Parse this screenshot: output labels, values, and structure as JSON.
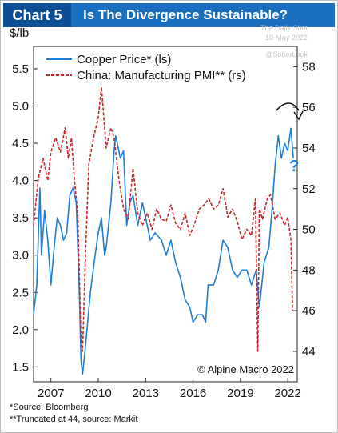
{
  "header": {
    "tag": "Chart 5",
    "title": "Is The Divergence Sustainable?"
  },
  "watermark": {
    "line1": "The Daily Shot",
    "line2": "10-May-2022",
    "line3": "@SoberLook"
  },
  "colors": {
    "header_bg": "#1a6fc0",
    "tag_bg": "#0d4f95",
    "copper": "#1f7ed6",
    "pmi": "#c62828"
  },
  "chart_data": {
    "type": "line",
    "title": "Is The Divergence Sustainable?",
    "left_axis": {
      "label": "$/lb",
      "ylim": [
        1.3,
        5.8
      ],
      "ticks": [
        "1.5",
        "2.0",
        "2.5",
        "3.0",
        "3.5",
        "4.0",
        "4.5",
        "5.0",
        "5.5"
      ]
    },
    "right_axis": {
      "ylim": [
        42.5,
        59
      ],
      "ticks": [
        "44",
        "46",
        "48",
        "50",
        "52",
        "54",
        "56",
        "58"
      ]
    },
    "x_axis": {
      "xlim": [
        2005.9,
        2022.6
      ],
      "ticks": [
        "2007",
        "2010",
        "2013",
        "2016",
        "2019",
        "2022"
      ]
    },
    "legend": [
      "Copper Price* (ls)",
      "China: Manufacturing PMI** (rs)"
    ],
    "annotations": {
      "copyright": "© Alpine Macro 2022",
      "question_mark": "?"
    },
    "series": [
      {
        "name": "Copper Price* (ls)",
        "axis": "left",
        "style": "solid",
        "x": [
          2005.9,
          2006.1,
          2006.3,
          2006.4,
          2006.6,
          2006.8,
          2007.0,
          2007.2,
          2007.4,
          2007.6,
          2007.8,
          2008.0,
          2008.2,
          2008.4,
          2008.6,
          2008.8,
          2008.9,
          2009.0,
          2009.2,
          2009.5,
          2009.8,
          2010.0,
          2010.2,
          2010.4,
          2010.5,
          2010.8,
          2011.0,
          2011.1,
          2011.4,
          2011.6,
          2011.8,
          2012.0,
          2012.2,
          2012.5,
          2012.8,
          2013.0,
          2013.3,
          2013.6,
          2014.0,
          2014.3,
          2014.6,
          2014.9,
          2015.2,
          2015.5,
          2015.8,
          2016.0,
          2016.3,
          2016.6,
          2016.8,
          2016.95,
          2017.3,
          2017.6,
          2017.9,
          2018.2,
          2018.5,
          2018.8,
          2019.1,
          2019.4,
          2019.7,
          2020.0,
          2020.2,
          2020.3,
          2020.5,
          2020.8,
          2021.0,
          2021.2,
          2021.4,
          2021.6,
          2021.8,
          2022.0,
          2022.2,
          2022.35
        ],
        "y": [
          2.2,
          2.6,
          3.9,
          3.0,
          3.6,
          3.2,
          2.6,
          3.1,
          3.5,
          3.4,
          3.2,
          3.3,
          3.8,
          3.9,
          3.7,
          2.5,
          1.6,
          1.4,
          1.8,
          2.5,
          3.0,
          3.3,
          3.5,
          3.0,
          3.1,
          3.7,
          4.4,
          4.6,
          4.3,
          4.4,
          3.4,
          3.7,
          3.8,
          3.4,
          3.7,
          3.5,
          3.2,
          3.3,
          3.2,
          3.0,
          3.2,
          2.9,
          2.7,
          2.4,
          2.3,
          2.1,
          2.2,
          2.2,
          2.1,
          2.6,
          2.6,
          2.8,
          3.2,
          3.1,
          2.8,
          2.7,
          2.8,
          2.8,
          2.6,
          2.8,
          2.3,
          2.5,
          2.9,
          3.1,
          3.6,
          4.2,
          4.6,
          4.3,
          4.5,
          4.4,
          4.7,
          4.3
        ]
      },
      {
        "name": "China: Manufacturing PMI** (rs)",
        "axis": "right",
        "style": "dashed",
        "x": [
          2005.9,
          2006.2,
          2006.5,
          2006.8,
          2007.0,
          2007.3,
          2007.6,
          2007.9,
          2008.1,
          2008.3,
          2008.5,
          2008.7,
          2008.9,
          2009.0,
          2009.2,
          2009.4,
          2009.7,
          2010.0,
          2010.2,
          2010.5,
          2010.8,
          2011.0,
          2011.3,
          2011.6,
          2011.9,
          2012.2,
          2012.5,
          2012.8,
          2013.1,
          2013.4,
          2013.7,
          2014.0,
          2014.3,
          2014.6,
          2014.9,
          2015.2,
          2015.5,
          2015.8,
          2016.1,
          2016.4,
          2016.7,
          2017.0,
          2017.3,
          2017.6,
          2017.9,
          2018.2,
          2018.5,
          2018.8,
          2019.1,
          2019.4,
          2019.7,
          2019.95,
          2020.1,
          2020.2,
          2020.4,
          2020.7,
          2020.9,
          2021.2,
          2021.5,
          2021.8,
          2022.0,
          2022.2,
          2022.3
        ],
        "y": [
          50.2,
          52.5,
          53.5,
          52.4,
          53.8,
          54.5,
          53.8,
          55.0,
          53.5,
          54.5,
          52.3,
          50.8,
          44.6,
          44.0,
          49.0,
          53.2,
          54.5,
          55.5,
          57.0,
          54.0,
          55.0,
          54.5,
          52.5,
          51.0,
          50.5,
          53.0,
          50.8,
          50.2,
          50.8,
          50.0,
          51.0,
          50.5,
          50.4,
          51.2,
          50.3,
          50.0,
          50.8,
          49.7,
          50.3,
          51.0,
          51.2,
          51.5,
          51.0,
          51.2,
          52.0,
          50.6,
          51.0,
          50.4,
          49.5,
          50.0,
          49.7,
          51.5,
          44.0,
          51.0,
          50.5,
          51.5,
          51.7,
          50.5,
          50.8,
          50.2,
          50.6,
          49.5,
          46.0
        ]
      }
    ]
  },
  "footnotes": [
    "*Source: Bloomberg",
    "**Truncated at 44, source: Markit"
  ]
}
